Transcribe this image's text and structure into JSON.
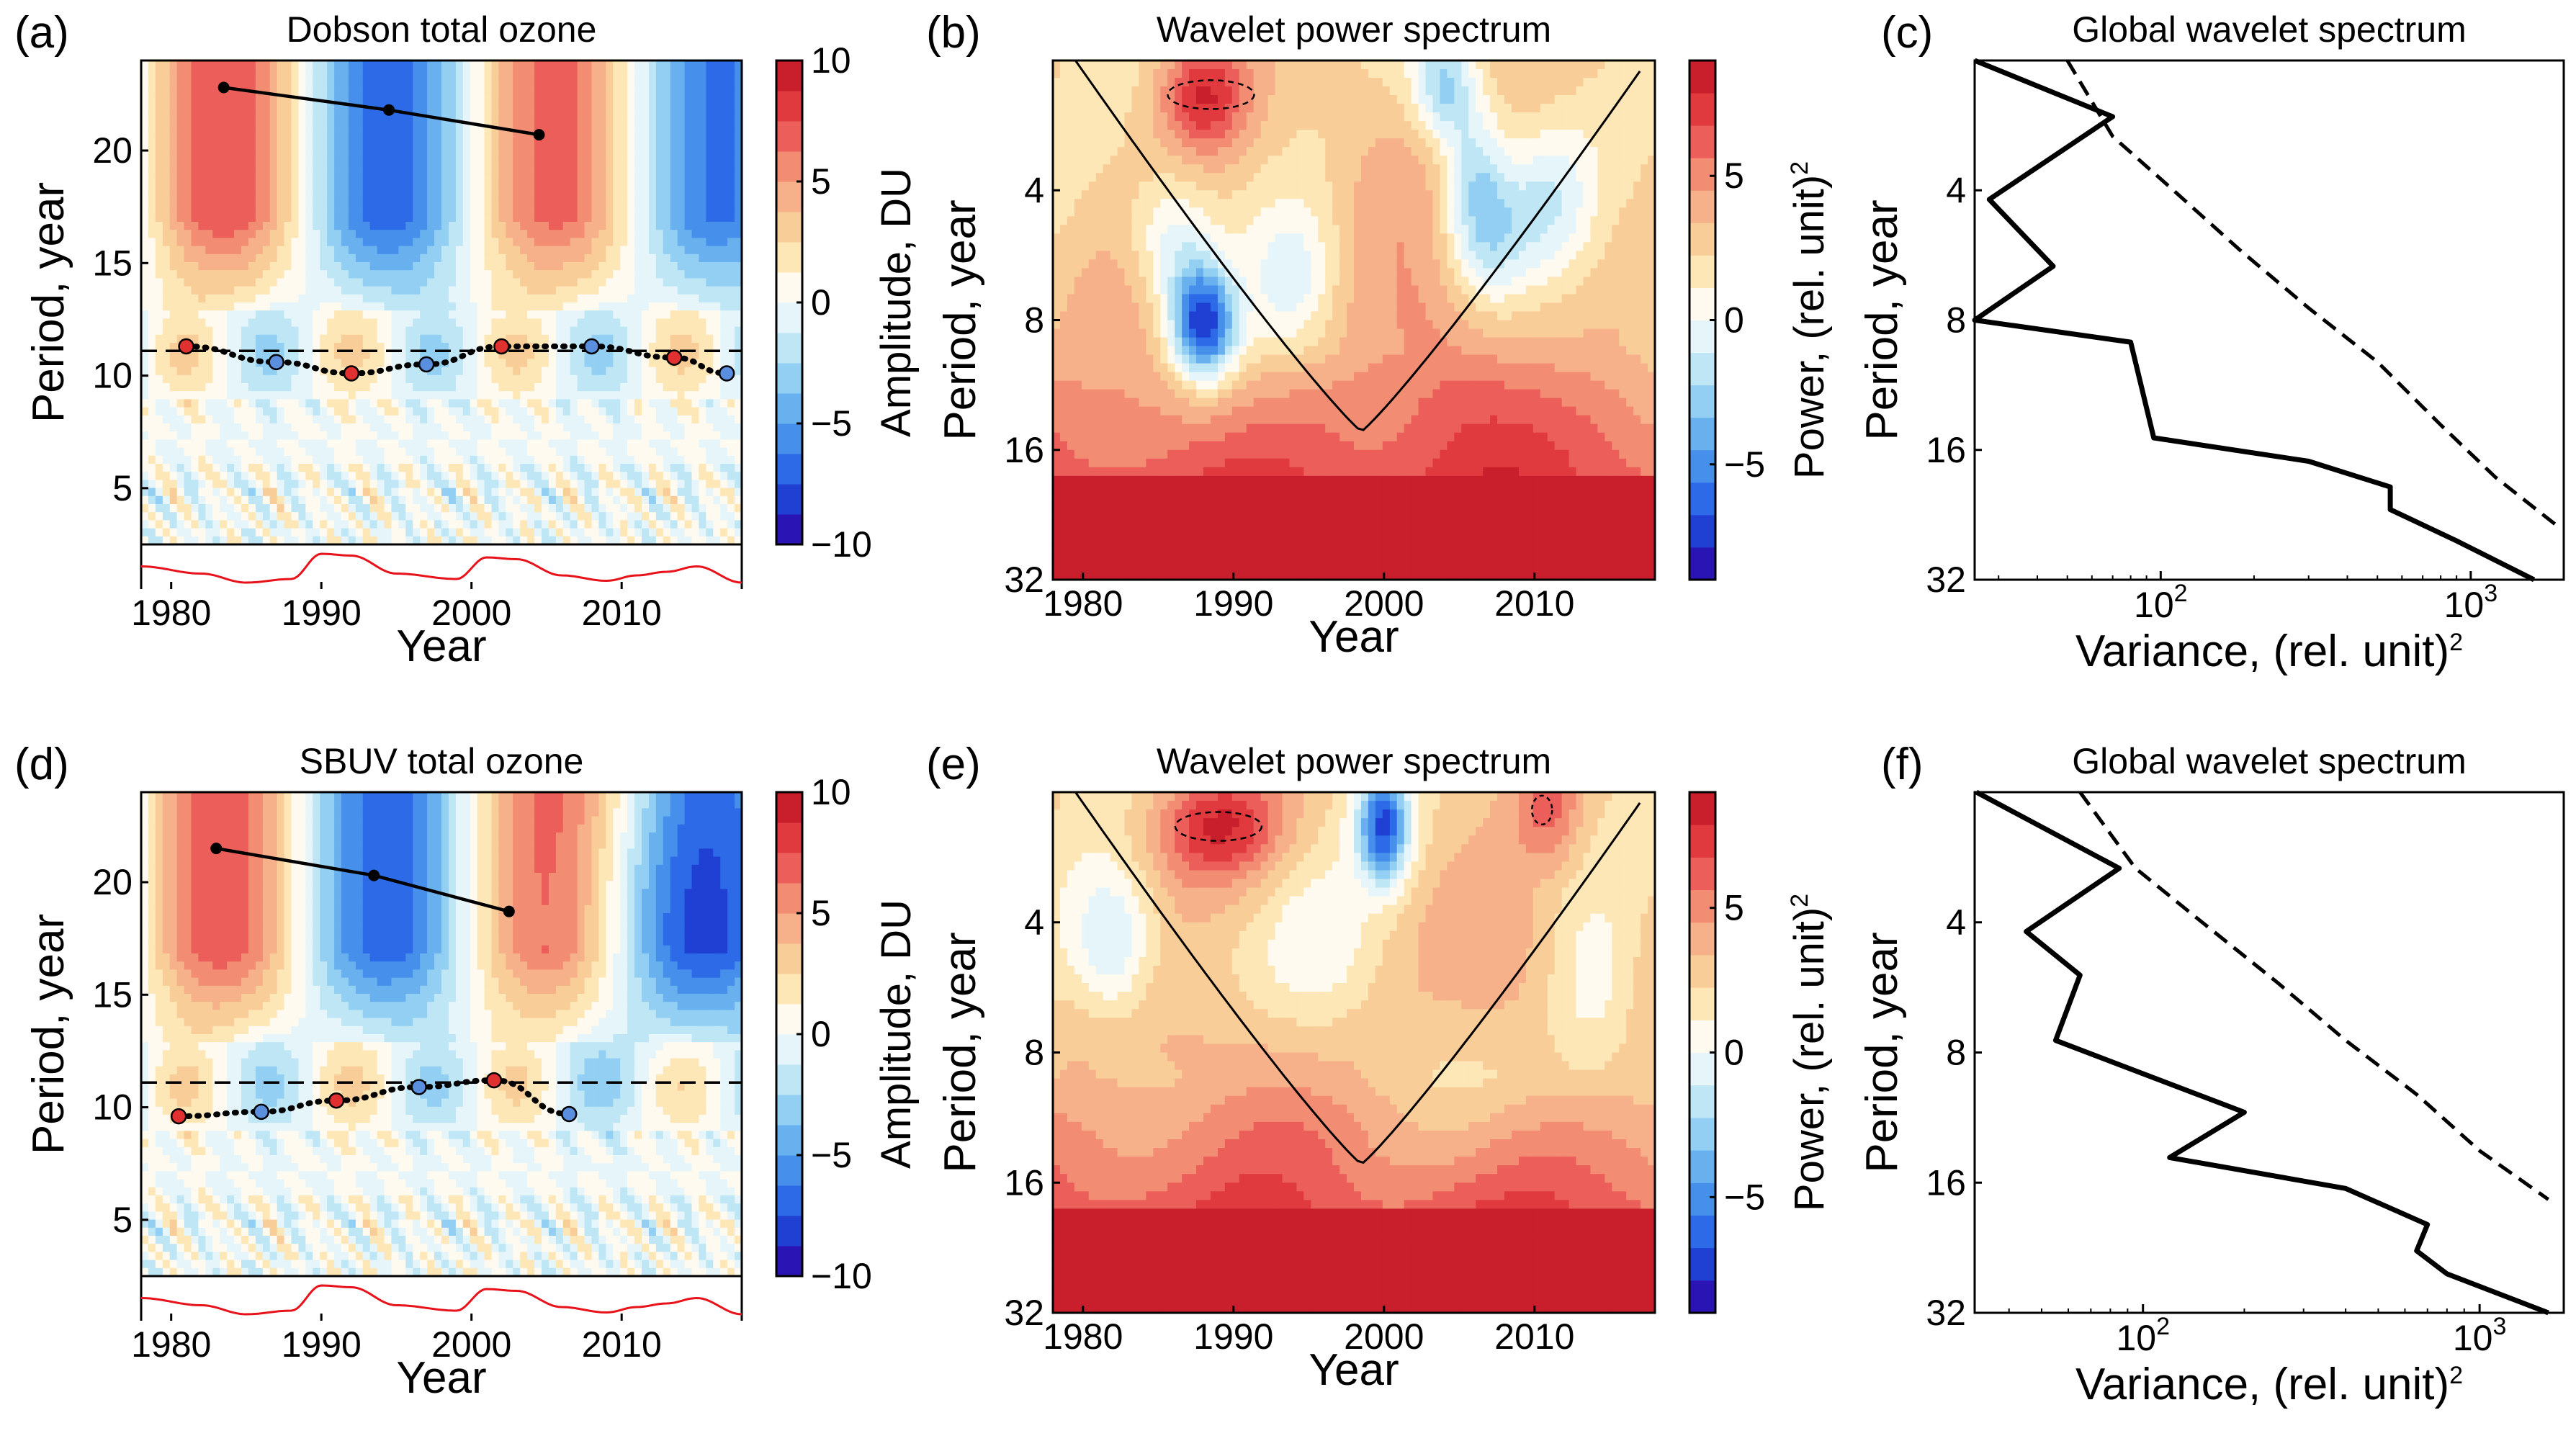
{
  "palette": {
    "diverging": [
      "#2a14b4",
      "#1f40d2",
      "#2d6ae8",
      "#4690ec",
      "#68b1ee",
      "#92cff2",
      "#bfe6f5",
      "#e5f5fa",
      "#fffaf0",
      "#fde7b6",
      "#f9cd98",
      "#f6b08a",
      "#f28c73",
      "#ec5e59",
      "#e03a3e",
      "#c91f2d"
    ],
    "frame": "#000000",
    "red_line": "#e8121a",
    "marker_red": "#e03030",
    "marker_blue": "#5a8fe0",
    "coi_fill": "#ececec"
  },
  "chart_data": [
    {
      "id": "a",
      "type": "heatmap",
      "panel_label": "(a)",
      "title": "Dobson total ozone",
      "xlabel": "Year",
      "ylabel": "Period, year",
      "xlim": [
        1978,
        2018
      ],
      "ylim": [
        2.5,
        24
      ],
      "xticks": [
        1980,
        1990,
        2000,
        2010
      ],
      "yticks": [
        5,
        10,
        15,
        20
      ],
      "colorbar": {
        "label": "Amplitude, DU",
        "ticks": [
          10,
          5,
          0,
          -5,
          -10
        ],
        "tick_labels": [
          "10",
          "5",
          "0",
          "−5",
          "−10"
        ],
        "range": [
          -10,
          10
        ]
      },
      "dashed_line_period": 11.1,
      "trend_line": {
        "x": [
          1983.5,
          1994.5,
          2004.5
        ],
        "y": [
          22.8,
          21.8,
          20.7
        ]
      },
      "dotted_curve": {
        "x": [
          1981,
          1987,
          1992,
          1997,
          2002,
          2008,
          2013.5,
          2017
        ],
        "y": [
          11.3,
          10.6,
          10.1,
          10.5,
          11.3,
          11.3,
          10.8,
          10.1
        ],
        "colors": [
          "red",
          "blue",
          "red",
          "blue",
          "red",
          "blue",
          "red",
          "blue"
        ]
      },
      "red_signal": {
        "x": [
          1978,
          1982,
          1985,
          1988,
          1990,
          1992,
          1995,
          1999,
          2001,
          2003,
          2006,
          2009,
          2011,
          2013,
          2015,
          2018
        ],
        "y": [
          0.55,
          0.35,
          0.1,
          0.2,
          0.9,
          0.85,
          0.35,
          0.2,
          0.8,
          0.75,
          0.3,
          0.15,
          0.3,
          0.4,
          0.55,
          0.1
        ]
      }
    },
    {
      "id": "b",
      "type": "heatmap",
      "panel_label": "(b)",
      "title": "Wavelet power spectrum",
      "xlabel": "Year",
      "ylabel": "Period, year",
      "xlim": [
        1978,
        2018
      ],
      "ylim_log2": [
        1,
        5
      ],
      "xticks": [
        1980,
        1990,
        2000,
        2010
      ],
      "yticks": [
        4,
        8,
        16,
        32
      ],
      "colorbar": {
        "label": "Power, (rel. unit)²",
        "ticks": [
          5,
          0,
          -5
        ],
        "tick_labels": [
          "5",
          "0",
          "−5"
        ],
        "range": [
          -9,
          9
        ]
      },
      "cone_of_influence": {
        "x": [
          1978,
          1988,
          1998.5,
          2009,
          2018
        ],
        "period": [
          2,
          5.2,
          14.5,
          5.2,
          2
        ]
      }
    },
    {
      "id": "c",
      "type": "line",
      "panel_label": "(c)",
      "title": "Global wavelet spectrum",
      "xlabel": "Variance, (rel. unit)²",
      "ylabel": "Period, year",
      "xlim_log10": [
        1.4,
        3.3
      ],
      "ylim_log2": [
        1,
        5
      ],
      "xticks": [
        100,
        1000
      ],
      "xtick_labels": [
        "10",
        "10"
      ],
      "xtick_exponents": [
        "2",
        "3"
      ],
      "yticks": [
        4,
        8,
        16,
        32
      ],
      "series": [
        {
          "name": "global wavelet spectrum",
          "style": "solid",
          "variance": [
            25,
            70,
            28,
            45,
            25,
            80,
            95,
            300,
            550,
            550,
            900,
            1600
          ],
          "period": [
            2,
            2.7,
            4.2,
            6,
            8,
            9,
            15,
            17,
            19.5,
            22,
            26,
            32
          ]
        },
        {
          "name": "significance level",
          "style": "dashed",
          "variance": [
            50,
            70,
            110,
            180,
            300,
            500,
            800,
            1200,
            1900
          ],
          "period": [
            2,
            3,
            4,
            5.5,
            7.5,
            10,
            14,
            18.5,
            24
          ]
        }
      ]
    },
    {
      "id": "d",
      "type": "heatmap",
      "panel_label": "(d)",
      "title": "SBUV total ozone",
      "xlabel": "Year",
      "ylabel": "Period, year",
      "xlim": [
        1978,
        2018
      ],
      "ylim": [
        2.5,
        24
      ],
      "xticks": [
        1980,
        1990,
        2000,
        2010
      ],
      "yticks": [
        5,
        10,
        15,
        20
      ],
      "colorbar": {
        "label": "Amplitude, DU",
        "ticks": [
          10,
          5,
          0,
          -5,
          -10
        ],
        "tick_labels": [
          "10",
          "5",
          "0",
          "−5",
          "−10"
        ],
        "range": [
          -10,
          10
        ]
      },
      "dashed_line_period": 11.1,
      "trend_line": {
        "x": [
          1983,
          1993.5,
          2002.5
        ],
        "y": [
          21.5,
          20.3,
          18.7
        ]
      },
      "dotted_curve": {
        "x": [
          1980.5,
          1986,
          1991,
          1996.5,
          2001.5,
          2006.5
        ],
        "y": [
          9.6,
          9.8,
          10.3,
          10.9,
          11.2,
          9.7
        ],
        "colors": [
          "red",
          "blue",
          "red",
          "blue",
          "red",
          "blue"
        ]
      },
      "red_signal": {
        "x": [
          1978,
          1982,
          1985,
          1988,
          1990,
          1992,
          1995,
          1999,
          2001,
          2003,
          2006,
          2009,
          2011,
          2013,
          2015,
          2018
        ],
        "y": [
          0.55,
          0.35,
          0.1,
          0.2,
          0.9,
          0.85,
          0.35,
          0.2,
          0.8,
          0.75,
          0.3,
          0.15,
          0.3,
          0.4,
          0.55,
          0.1
        ]
      }
    },
    {
      "id": "e",
      "type": "heatmap",
      "panel_label": "(e)",
      "title": "Wavelet power spectrum",
      "xlabel": "Year",
      "ylabel": "Period, year",
      "xlim": [
        1978,
        2018
      ],
      "ylim_log2": [
        1,
        5
      ],
      "xticks": [
        1980,
        1990,
        2000,
        2010
      ],
      "yticks": [
        4,
        8,
        16,
        32
      ],
      "colorbar": {
        "label": "Power, (rel. unit)²",
        "ticks": [
          5,
          0,
          -5
        ],
        "tick_labels": [
          "5",
          "0",
          "−5"
        ],
        "range": [
          -9,
          9
        ]
      },
      "cone_of_influence": {
        "x": [
          1978,
          1988,
          1998.5,
          2009,
          2018
        ],
        "period": [
          2,
          5.2,
          14.5,
          5.2,
          2
        ]
      }
    },
    {
      "id": "f",
      "type": "line",
      "panel_label": "(f)",
      "title": "Global wavelet spectrum",
      "xlabel": "Variance, (rel. unit)²",
      "ylabel": "Period, year",
      "xlim_log10": [
        1.5,
        3.25
      ],
      "ylim_log2": [
        1,
        5
      ],
      "xticks": [
        100,
        1000
      ],
      "xtick_labels": [
        "10",
        "10"
      ],
      "xtick_exponents": [
        "2",
        "3"
      ],
      "yticks": [
        4,
        8,
        16,
        32
      ],
      "series": [
        {
          "name": "global wavelet spectrum",
          "style": "solid",
          "variance": [
            32,
            85,
            45,
            65,
            55,
            200,
            120,
            400,
            700,
            650,
            800,
            1600
          ],
          "period": [
            2,
            3,
            4.2,
            5.3,
            7.5,
            11,
            14,
            16.5,
            20,
            23,
            26,
            32
          ]
        },
        {
          "name": "significance level",
          "style": "dashed",
          "variance": [
            65,
            95,
            150,
            250,
            400,
            650,
            1000,
            1600
          ],
          "period": [
            2,
            3,
            4,
            5.5,
            7.5,
            10,
            13.5,
            17.5
          ]
        }
      ]
    }
  ]
}
